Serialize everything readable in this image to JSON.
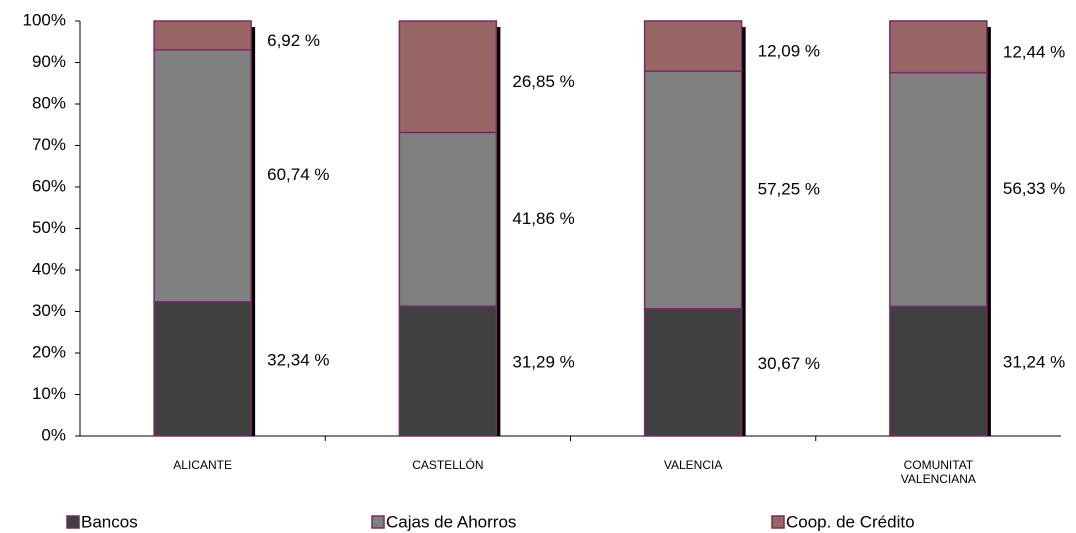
{
  "chart_data": {
    "type": "stacked-bar",
    "categories": [
      "ALICANTE",
      "CASTELLÓN",
      "VALENCIA",
      "COMUNITAT VALENCIANA"
    ],
    "series": [
      {
        "name": "Bancos",
        "color": "#404040",
        "values": [
          32.34,
          31.29,
          30.67,
          31.24
        ],
        "value_labels": [
          "32,34 %",
          "31,29 %",
          "30,67 %",
          "31,24 %"
        ]
      },
      {
        "name": "Cajas de Ahorros",
        "color": "#808080",
        "values": [
          60.74,
          41.86,
          57.25,
          56.33
        ],
        "value_labels": [
          "60,74 %",
          "41,86 %",
          "57,25 %",
          "56,33 %"
        ]
      },
      {
        "name": "Coop. de Crédito",
        "color": "#996666",
        "values": [
          6.92,
          26.85,
          12.09,
          12.44
        ],
        "value_labels": [
          "6,92 %",
          "26,85 %",
          "12,09 %",
          "12,44 %"
        ]
      }
    ],
    "ylim": [
      0,
      100
    ],
    "yticks": [
      {
        "value": 0,
        "label": "0%"
      },
      {
        "value": 10,
        "label": "10%"
      },
      {
        "value": 20,
        "label": "20%"
      },
      {
        "value": 30,
        "label": "30%"
      },
      {
        "value": 40,
        "label": "40%"
      },
      {
        "value": 50,
        "label": "50%"
      },
      {
        "value": 60,
        "label": "60%"
      },
      {
        "value": 70,
        "label": "70%"
      },
      {
        "value": 80,
        "label": "80%"
      },
      {
        "value": 90,
        "label": "90%"
      },
      {
        "value": 100,
        "label": "100%"
      }
    ],
    "grid": false,
    "legend": "bottom"
  }
}
